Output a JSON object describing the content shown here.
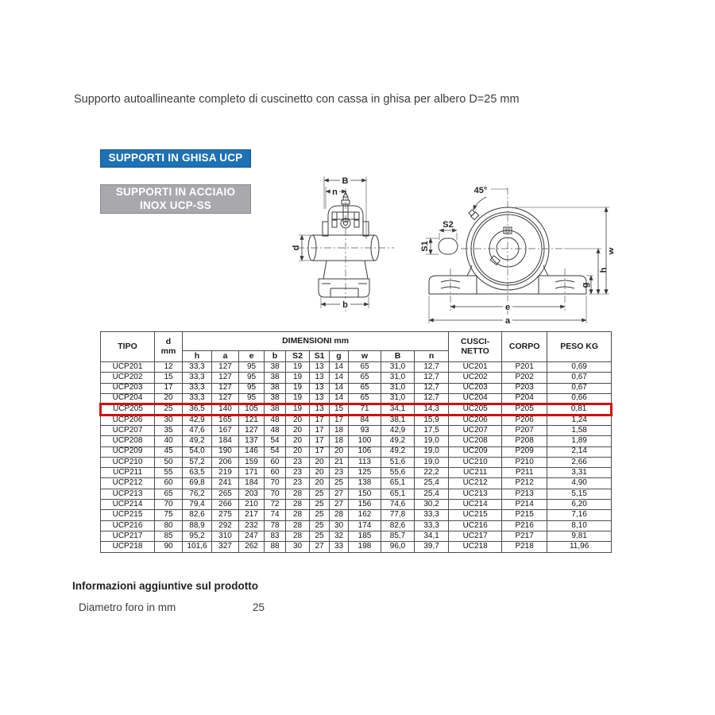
{
  "page_title": "Supporto autoallineante completo di cuscinetto con cassa in ghisa per albero D=25 mm",
  "buttons": {
    "ghisa_label": "SUPPORTI IN GHISA UCP",
    "inox_label_line1": "SUPPORTI IN ACCIAIO",
    "inox_label_line2": "INOX UCP-SS"
  },
  "colors": {
    "button_blue": "#1d71b5",
    "button_gray": "#a8a8ad",
    "highlight_red": "#cc1111"
  },
  "diagrams": {
    "side_view": {
      "label_B": "B",
      "label_n": "n",
      "label_d": "d",
      "label_b": "b"
    },
    "front_view": {
      "label_angle": "45°",
      "label_S2": "S2",
      "label_S1": "S1",
      "label_w": "w",
      "label_h": "h",
      "label_g": "g",
      "label_e": "e",
      "label_a": "a"
    }
  },
  "table": {
    "header": {
      "tipo": "TIPO",
      "d_line1": "d",
      "d_line2": "mm",
      "dimensioni": "DIMENSIONI mm",
      "sub_columns": [
        "h",
        "a",
        "e",
        "b",
        "S2",
        "S1",
        "g",
        "w",
        "B",
        "n"
      ],
      "cuscinetto_line1": "CUSCI-",
      "cuscinetto_line2": "NETTO",
      "corpo": "CORPO",
      "peso": "PESO KG"
    },
    "highlighted_tipo": "UCP205",
    "rows": [
      [
        "UCP201",
        "12",
        "33,3",
        "127",
        "95",
        "38",
        "19",
        "13",
        "14",
        "65",
        "31,0",
        "12,7",
        "UC201",
        "P201",
        "0,69"
      ],
      [
        "UCP202",
        "15",
        "33,3",
        "127",
        "95",
        "38",
        "19",
        "13",
        "14",
        "65",
        "31,0",
        "12,7",
        "UC202",
        "P202",
        "0,67"
      ],
      [
        "UCP203",
        "17",
        "33,3",
        "127",
        "95",
        "38",
        "19",
        "13",
        "14",
        "65",
        "31,0",
        "12,7",
        "UC203",
        "P203",
        "0,67"
      ],
      [
        "UCP204",
        "20",
        "33,3",
        "127",
        "95",
        "38",
        "19",
        "13",
        "14",
        "65",
        "31,0",
        "12,7",
        "UC204",
        "P204",
        "0,66"
      ],
      [
        "UCP205",
        "25",
        "36,5",
        "140",
        "105",
        "38",
        "19",
        "13",
        "15",
        "71",
        "34,1",
        "14,3",
        "UC205",
        "P205",
        "0,81"
      ],
      [
        "UCP206",
        "30",
        "42,9",
        "165",
        "121",
        "48",
        "20",
        "17",
        "17",
        "84",
        "38,1",
        "15,9",
        "UC206",
        "P206",
        "1,24"
      ],
      [
        "UCP207",
        "35",
        "47,6",
        "167",
        "127",
        "48",
        "20",
        "17",
        "18",
        "93",
        "42,9",
        "17,5",
        "UC207",
        "P207",
        "1,58"
      ],
      [
        "UCP208",
        "40",
        "49,2",
        "184",
        "137",
        "54",
        "20",
        "17",
        "18",
        "100",
        "49,2",
        "19,0",
        "UC208",
        "P208",
        "1,89"
      ],
      [
        "UCP209",
        "45",
        "54,0",
        "190",
        "146",
        "54",
        "20",
        "17",
        "20",
        "106",
        "49,2",
        "19,0",
        "UC209",
        "P209",
        "2,14"
      ],
      [
        "UCP210",
        "50",
        "57,2",
        "206",
        "159",
        "60",
        "23",
        "20",
        "21",
        "113",
        "51,6",
        "19,0",
        "UC210",
        "P210",
        "2,66"
      ],
      [
        "UCP211",
        "55",
        "63,5",
        "219",
        "171",
        "60",
        "23",
        "20",
        "23",
        "125",
        "55,6",
        "22,2",
        "UC211",
        "P211",
        "3,31"
      ],
      [
        "UCP212",
        "60",
        "69,8",
        "241",
        "184",
        "70",
        "23",
        "20",
        "25",
        "138",
        "65,1",
        "25,4",
        "UC212",
        "P212",
        "4,90"
      ],
      [
        "UCP213",
        "65",
        "76,2",
        "265",
        "203",
        "70",
        "28",
        "25",
        "27",
        "150",
        "65,1",
        "25,4",
        "UC213",
        "P213",
        "5,15"
      ],
      [
        "UCP214",
        "70",
        "79,4",
        "266",
        "210",
        "72",
        "28",
        "25",
        "27",
        "156",
        "74,6",
        "30,2",
        "UC214",
        "P214",
        "6,20"
      ],
      [
        "UCP215",
        "75",
        "82,6",
        "275",
        "217",
        "74",
        "28",
        "25",
        "28",
        "162",
        "77,8",
        "33,3",
        "UC215",
        "P215",
        "7,16"
      ],
      [
        "UCP216",
        "80",
        "88,9",
        "292",
        "232",
        "78",
        "28",
        "25",
        "30",
        "174",
        "82,6",
        "33,3",
        "UC216",
        "P216",
        "8,10"
      ],
      [
        "UCP217",
        "85",
        "95,2",
        "310",
        "247",
        "83",
        "28",
        "25",
        "32",
        "185",
        "85,7",
        "34,1",
        "UC217",
        "P217",
        "9,81"
      ],
      [
        "UCP218",
        "90",
        "101,6",
        "327",
        "262",
        "88",
        "30",
        "27",
        "33",
        "198",
        "96,0",
        "39,7",
        "UC218",
        "P218",
        "11,96"
      ]
    ]
  },
  "additional_info": {
    "title": "Informazioni aggiuntive sul prodotto",
    "label": "Diametro foro in mm",
    "value": "25"
  }
}
